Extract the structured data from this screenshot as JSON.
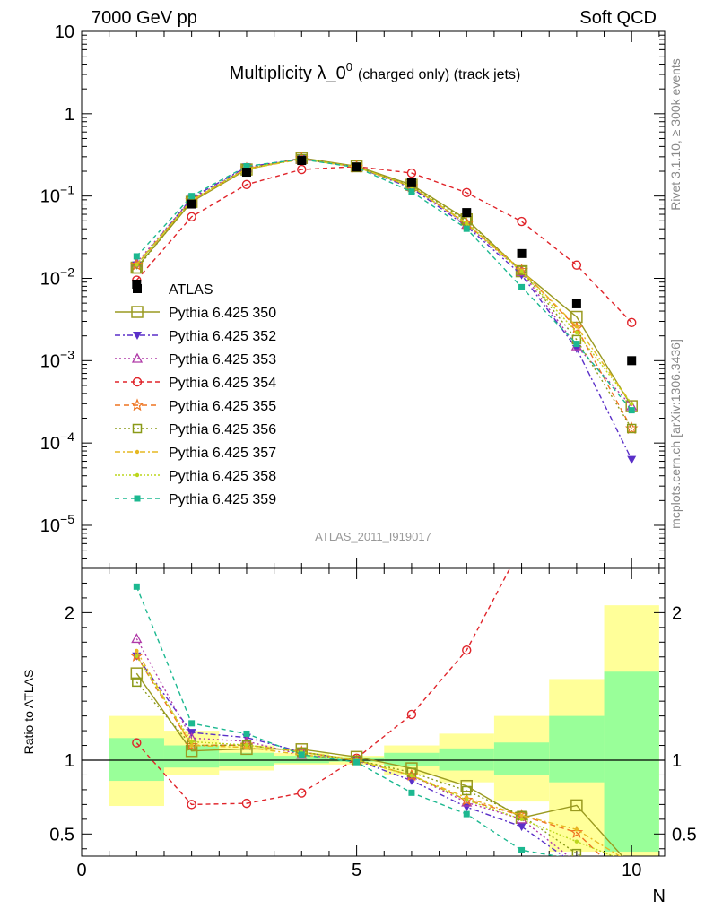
{
  "header": {
    "left": "7000 GeV pp",
    "right": "Soft QCD"
  },
  "side_labels": {
    "rivet": "Rivet 3.1.10, ≥ 300k events",
    "mcplots": "mcplots.cern.ch [arXiv:1306.3436]"
  },
  "chart_data": {
    "type": "line",
    "title_main": "Multiplicity λ_0",
    "title_sup": "0",
    "title_suffix": "(charged only) (track jets)",
    "analysis_id": "ATLAS_2011_I919017",
    "xlabel": "N",
    "ylabel_ratio": "Ratio to ATLAS",
    "xlim": [
      0,
      10.6
    ],
    "ylim_main": [
      3e-06,
      10
    ],
    "yscale_main": "log",
    "ylim_ratio": [
      0.35,
      2.3
    ],
    "x_ticks": [
      "0",
      "5",
      "10"
    ],
    "y_ticks_main": [
      "10",
      "1",
      "10−1",
      "10−2",
      "10−3",
      "10−4",
      "10−5"
    ],
    "y_ticks_ratio": [
      "0.5",
      "1",
      "2"
    ],
    "x": [
      1,
      2,
      3,
      4,
      5,
      6,
      7,
      8,
      9,
      10
    ],
    "data": {
      "name": "ATLAS",
      "color": "#000000",
      "values": [
        0.0085,
        0.08,
        0.195,
        0.27,
        0.225,
        0.145,
        0.063,
        0.02,
        0.0049,
        0.001
      ]
    },
    "series": [
      {
        "name": "Pythia 6.425 350",
        "color": "#9a9a20",
        "dash": "",
        "marker": "open-square-large",
        "values": [
          0.0135,
          0.085,
          0.21,
          0.29,
          0.23,
          0.137,
          0.052,
          0.0122,
          0.0034,
          0.00028
        ]
      },
      {
        "name": "Pythia 6.425 352",
        "color": "#5a2fc8",
        "dash": "6,3,2,3",
        "marker": "down-triangle",
        "values": [
          0.0145,
          0.095,
          0.225,
          0.285,
          0.225,
          0.125,
          0.043,
          0.011,
          0.0014,
          6.3e-05
        ]
      },
      {
        "name": "Pythia 6.425 353",
        "color": "#b03aa8",
        "dash": "2,3",
        "marker": "open-triangle",
        "values": [
          0.0155,
          0.092,
          0.22,
          0.28,
          0.225,
          0.13,
          0.045,
          0.012,
          0.0015,
          0.00028
        ]
      },
      {
        "name": "Pythia 6.425 354",
        "color": "#e0242a",
        "dash": "5,4",
        "marker": "open-circle",
        "values": [
          0.0095,
          0.056,
          0.138,
          0.21,
          0.228,
          0.19,
          0.11,
          0.049,
          0.0145,
          0.0029
        ]
      },
      {
        "name": "Pythia 6.425 355",
        "color": "#ee7420",
        "dash": "6,4",
        "marker": "open-star",
        "values": [
          0.0145,
          0.088,
          0.215,
          0.285,
          0.225,
          0.13,
          0.046,
          0.0125,
          0.0025,
          0.00015
        ]
      },
      {
        "name": "Pythia 6.425 356",
        "color": "#8a9a18",
        "dash": "2,3",
        "marker": "open-square-small",
        "values": [
          0.013,
          0.088,
          0.215,
          0.285,
          0.225,
          0.133,
          0.05,
          0.0125,
          0.0018,
          0.00015
        ]
      },
      {
        "name": "Pythia 6.425 357",
        "color": "#e6b822",
        "dash": "6,3,2,3",
        "marker": "dot",
        "values": [
          0.0148,
          0.088,
          0.212,
          0.28,
          0.225,
          0.13,
          0.047,
          0.0125,
          0.0026,
          0.0003
        ]
      },
      {
        "name": "Pythia 6.425 358",
        "color": "#bcd61c",
        "dash": "2,2",
        "marker": "dot",
        "values": [
          0.0145,
          0.09,
          0.215,
          0.285,
          0.225,
          0.13,
          0.046,
          0.012,
          0.0022,
          0.0003
        ]
      },
      {
        "name": "Pythia 6.425 359",
        "color": "#1cb890",
        "dash": "5,4",
        "marker": "filled-square",
        "values": [
          0.0185,
          0.1,
          0.23,
          0.28,
          0.222,
          0.113,
          0.04,
          0.0078,
          0.0016,
          0.00025
        ]
      }
    ],
    "uncertainty_band_ratio": {
      "x_edges": [
        0.5,
        1.5,
        2.5,
        3.5,
        4.5,
        5.5,
        6.5,
        7.5,
        8.5,
        9.5,
        10.5
      ],
      "inner_low": [
        0.86,
        0.95,
        0.96,
        0.98,
        0.99,
        0.96,
        0.93,
        0.9,
        0.85,
        0.38
      ],
      "inner_high": [
        1.15,
        1.1,
        1.05,
        1.03,
        1.02,
        1.05,
        1.08,
        1.12,
        1.3,
        1.6
      ],
      "outer_low": [
        0.69,
        0.9,
        0.93,
        0.97,
        0.97,
        0.9,
        0.85,
        0.72,
        0.38,
        0.3
      ],
      "outer_high": [
        1.3,
        1.2,
        1.1,
        1.05,
        1.03,
        1.1,
        1.18,
        1.3,
        1.55,
        2.05
      ]
    },
    "legend_placement": "middle-left"
  }
}
